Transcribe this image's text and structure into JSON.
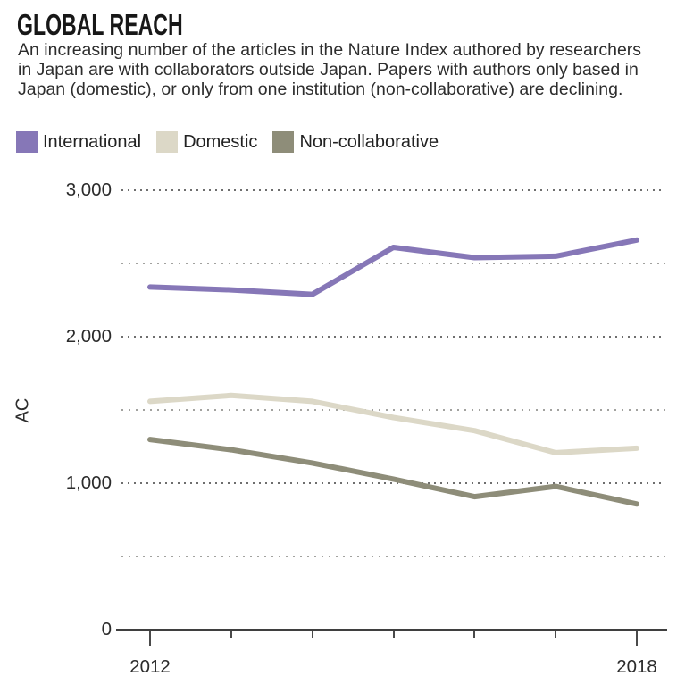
{
  "header": {
    "title": "GLOBAL REACH",
    "description_lines": [
      "An increasing number of the articles in the Nature Index authored by researchers",
      "in Japan are with collaborators outside Japan. Papers with authors only based in",
      "Japan (domestic), or only from one institution (non-collaborative) are declining."
    ]
  },
  "axis": {
    "y_label": "AC",
    "y_tick_labels": [
      "3,000",
      "2,000",
      "1,000",
      "0"
    ],
    "x_tick_labels": [
      "2012",
      "2018"
    ]
  },
  "chart_data": {
    "type": "line",
    "title": "GLOBAL REACH",
    "xlabel": "",
    "ylabel": "AC",
    "x": [
      2012,
      2013,
      2014,
      2015,
      2016,
      2017,
      2018
    ],
    "x_axis_labeled_years": [
      2012,
      2018
    ],
    "ylim": [
      0,
      3000
    ],
    "y_gridline_step": 500,
    "y_labeled_ticks": [
      0,
      1000,
      2000,
      3000
    ],
    "grid": "horizontal-dotted",
    "legend_position": "top-left",
    "series": [
      {
        "name": "International",
        "color": "#8677b7",
        "values": [
          2340,
          2320,
          2290,
          2610,
          2540,
          2550,
          2660
        ]
      },
      {
        "name": "Domestic",
        "color": "#dcd8c7",
        "values": [
          1560,
          1600,
          1560,
          1450,
          1360,
          1210,
          1240
        ]
      },
      {
        "name": "Non-collaborative",
        "color": "#8e8d79",
        "values": [
          1300,
          1230,
          1140,
          1030,
          910,
          980,
          860
        ]
      }
    ]
  }
}
